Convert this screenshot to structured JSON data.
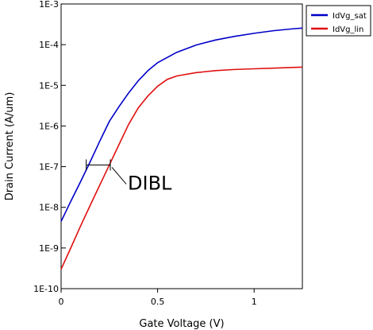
{
  "chart_data": {
    "type": "line",
    "xlabel": "Gate Voltage (V)",
    "ylabel": "Drain Current (A/um)",
    "xlim": [
      0,
      1.25
    ],
    "ylim": [
      1e-10,
      0.001
    ],
    "yscale": "log",
    "x_ticks": [
      0,
      0.5,
      1
    ],
    "x_tick_labels": [
      "0",
      "0.5",
      "1"
    ],
    "y_ticks": [
      1e-10,
      1e-09,
      1e-08,
      1e-07,
      1e-06,
      1e-05,
      0.0001,
      0.001
    ],
    "y_tick_labels": [
      "1E-10",
      "1E-9",
      "1E-8",
      "1E-7",
      "1E-6",
      "1E-5",
      "1E-4",
      "1E-3"
    ],
    "grid": false,
    "legend_position": "outside-top-right",
    "series": [
      {
        "name": "IdVg_sat",
        "color": "#0000c8",
        "x": [
          0,
          0.05,
          0.1,
          0.15,
          0.2,
          0.25,
          0.3,
          0.35,
          0.4,
          0.45,
          0.5,
          0.6,
          0.7,
          0.8,
          0.9,
          1.0,
          1.1,
          1.2,
          1.25
        ],
        "y": [
          4.5e-09,
          1.4e-08,
          4.2e-08,
          1.3e-07,
          4.2e-07,
          1.3e-06,
          3e-06,
          6.5e-06,
          1.3e-05,
          2.3e-05,
          3.6e-05,
          6.5e-05,
          9.8e-05,
          0.00013,
          0.00016,
          0.00019,
          0.00022,
          0.000245,
          0.000255
        ]
      },
      {
        "name": "IdVg_lin",
        "color": "#e01010",
        "x": [
          0,
          0.05,
          0.1,
          0.15,
          0.2,
          0.25,
          0.3,
          0.35,
          0.4,
          0.45,
          0.5,
          0.55,
          0.6,
          0.7,
          0.8,
          0.9,
          1.0,
          1.1,
          1.2,
          1.25
        ],
        "y": [
          3e-10,
          1e-09,
          3.4e-09,
          1.1e-08,
          3.5e-08,
          1.1e-07,
          3.5e-07,
          1.1e-06,
          2.8e-06,
          5.5e-06,
          9.5e-06,
          1.4e-05,
          1.7e-05,
          2.05e-05,
          2.3e-05,
          2.45e-05,
          2.55e-05,
          2.65e-05,
          2.75e-05,
          2.8e-05
        ]
      }
    ],
    "annotations": [
      {
        "text": "DIBL",
        "x_from": 0.13,
        "x_to": 0.255,
        "y": 1.1e-07
      }
    ]
  }
}
